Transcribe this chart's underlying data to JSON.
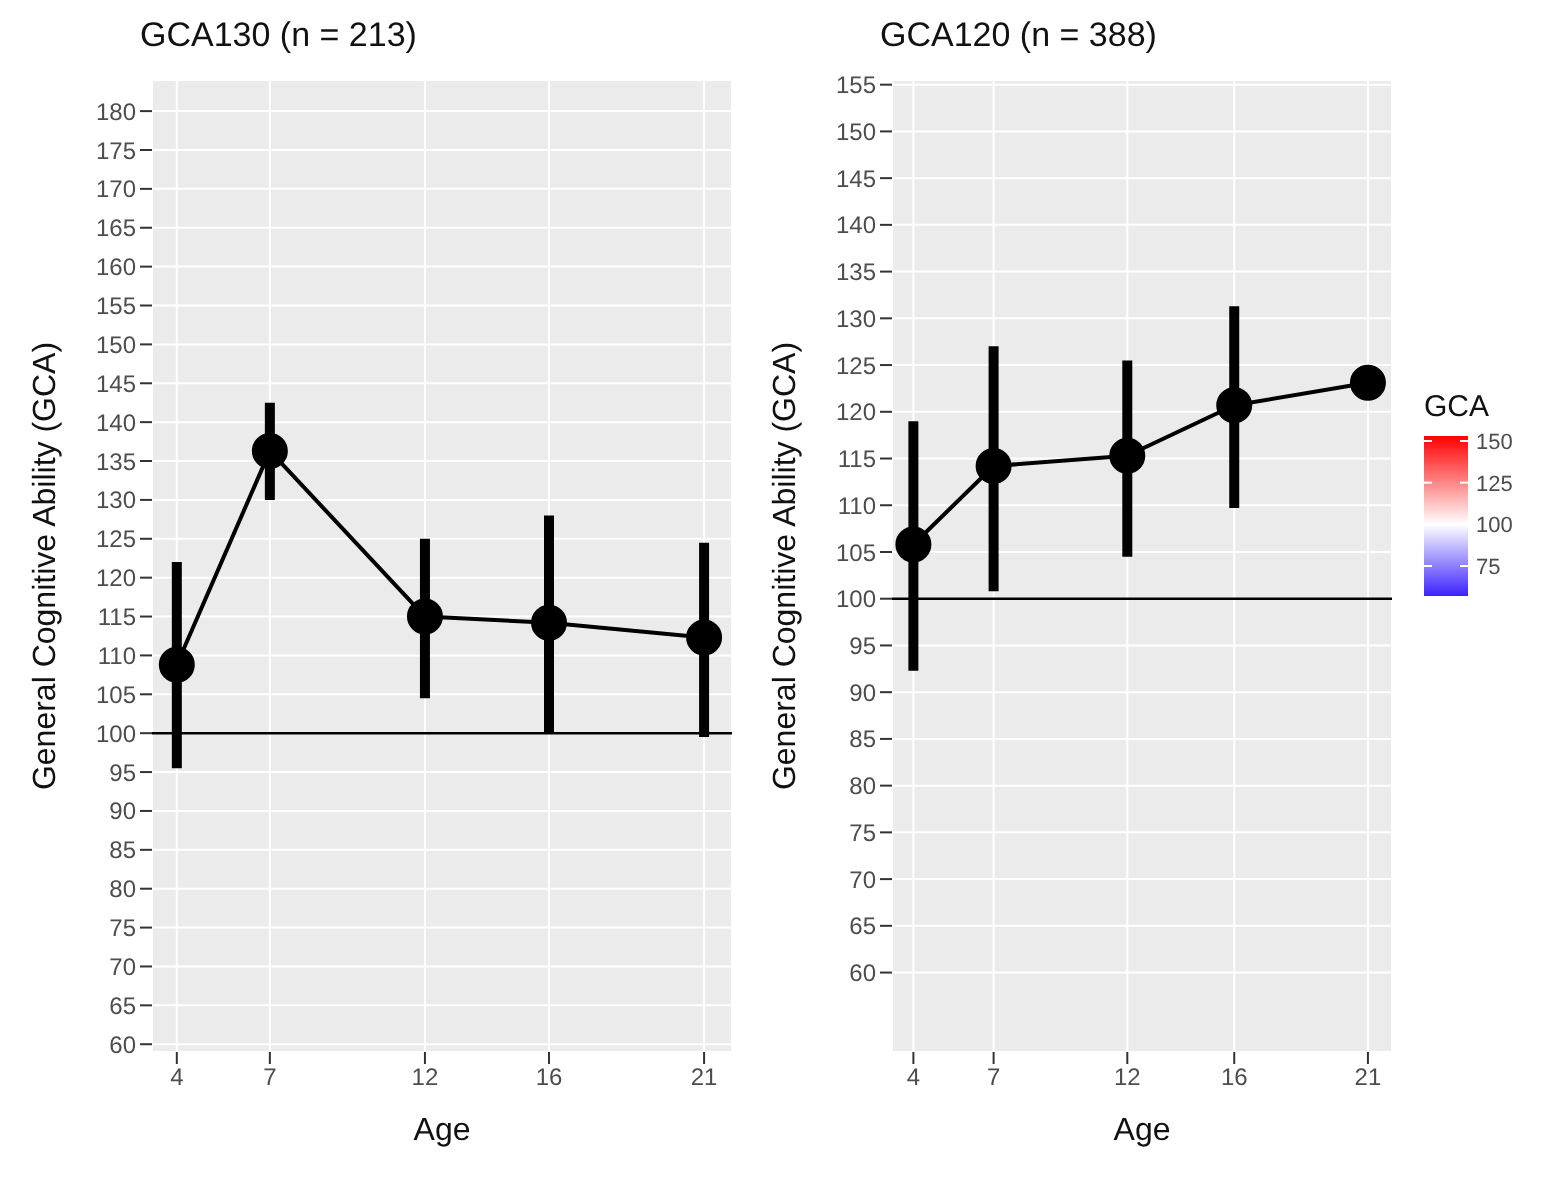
{
  "chart_data": [
    {
      "type": "line",
      "title": "GCA130 (n = 213)",
      "xlabel": "Age",
      "ylabel": "General Cognitive Ability (GCA)",
      "x": [
        4,
        7,
        12,
        16,
        21
      ],
      "series": [
        {
          "color": "#000000",
          "values": [
            108.8,
            136.3,
            115,
            114.2,
            112.3
          ],
          "errors": [
            [
              95.5,
              122
            ],
            [
              130,
              142.5
            ],
            [
              104.5,
              125
            ],
            [
              100,
              128
            ],
            [
              99.5,
              124.5
            ]
          ]
        }
      ],
      "xlim": [
        3.2,
        21.9
      ],
      "xticks": [
        4,
        7,
        12,
        16,
        21
      ],
      "ylim": [
        59,
        184
      ],
      "yticks": [
        60,
        65,
        70,
        75,
        80,
        85,
        90,
        95,
        100,
        105,
        110,
        115,
        120,
        125,
        130,
        135,
        140,
        145,
        150,
        155,
        160,
        165,
        170,
        175,
        180
      ],
      "ref_lines": [
        {
          "axis": "y",
          "value": 100,
          "color": "#000000"
        }
      ],
      "grid": true,
      "marker": "circle",
      "line_style": "solid"
    },
    {
      "type": "line",
      "title": "GCA120 (n = 388)",
      "xlabel": "Age",
      "ylabel": "General Cognitive Ability (GCA)",
      "x": [
        4,
        7,
        12,
        16,
        21
      ],
      "series": [
        {
          "color": "#000000",
          "values": [
            105.8,
            114.2,
            115.3,
            120.7,
            123.1
          ],
          "errors": [
            [
              92.3,
              119
            ],
            [
              100.8,
              127
            ],
            [
              104.5,
              125.5
            ],
            [
              109.7,
              131.3
            ],
            [
              121.5,
              124.8
            ]
          ]
        }
      ],
      "xlim": [
        3.2,
        21.9
      ],
      "xticks": [
        4,
        7,
        12,
        16,
        21
      ],
      "ylim": [
        51.5,
        155.5
      ],
      "yticks": [
        60,
        65,
        70,
        75,
        80,
        85,
        90,
        95,
        100,
        105,
        110,
        115,
        120,
        125,
        130,
        135,
        140,
        145,
        150,
        155
      ],
      "ref_lines": [
        {
          "axis": "y",
          "value": 100,
          "color": "#000000"
        }
      ],
      "grid": true,
      "marker": "circle",
      "line_style": "solid",
      "clabel": "GCA",
      "clim": [
        57,
        153
      ],
      "cticks": [
        75,
        100,
        125,
        150
      ]
    }
  ]
}
